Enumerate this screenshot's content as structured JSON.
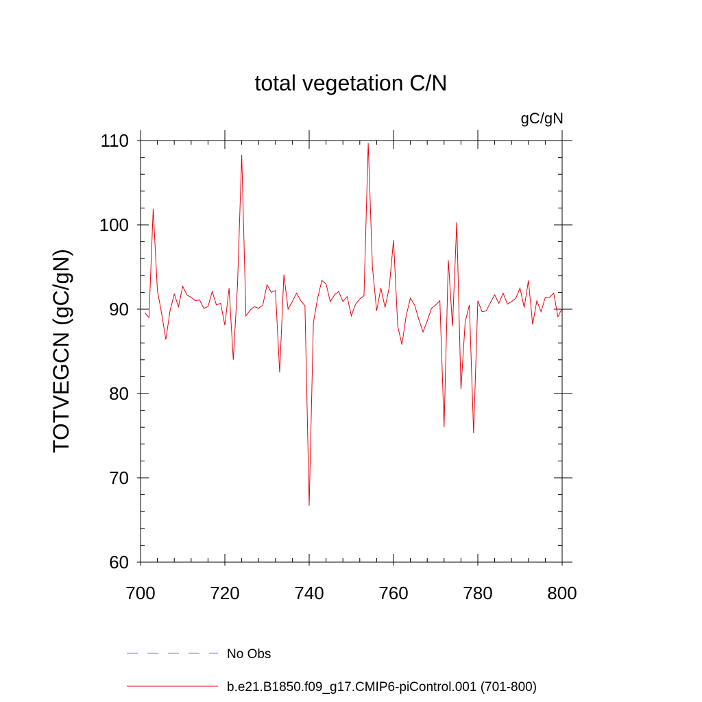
{
  "chart_data": {
    "type": "line",
    "title": "total vegetation C/N",
    "units": "gC/gN",
    "ylabel": "TOTVEGCN  (gC/gN)",
    "xlabel": "",
    "xlim": [
      700,
      800
    ],
    "ylim": [
      60,
      110
    ],
    "xticks": [
      700,
      720,
      740,
      760,
      780,
      800
    ],
    "xtick_labels": [
      "700",
      "720",
      "740",
      "760",
      "780",
      "800"
    ],
    "yticks": [
      60,
      70,
      80,
      90,
      100,
      110
    ],
    "ytick_labels": [
      "60",
      "70",
      "80",
      "90",
      "100",
      "110"
    ],
    "grid": false,
    "legend_position": "bottom-left",
    "series": [
      {
        "name": "No Obs",
        "color": "#7b74c8",
        "style": "dashed",
        "x": [],
        "values": []
      },
      {
        "name": "b.e21.B1850.f09_g17.CMIP6-piControl.001 (701-800)",
        "color": "#e8000b",
        "style": "solid",
        "x": [
          701,
          702,
          703,
          704,
          705,
          706,
          707,
          708,
          709,
          710,
          711,
          712,
          713,
          714,
          715,
          716,
          717,
          718,
          719,
          720,
          721,
          722,
          723,
          724,
          725,
          726,
          727,
          728,
          729,
          730,
          731,
          732,
          733,
          734,
          735,
          736,
          737,
          738,
          739,
          740,
          741,
          742,
          743,
          744,
          745,
          746,
          747,
          748,
          749,
          750,
          751,
          752,
          753,
          754,
          755,
          756,
          757,
          758,
          759,
          760,
          761,
          762,
          763,
          764,
          765,
          766,
          767,
          768,
          769,
          770,
          771,
          772,
          773,
          774,
          775,
          776,
          777,
          778,
          779,
          780,
          781,
          782,
          783,
          784,
          785,
          786,
          787,
          788,
          789,
          790,
          791,
          792,
          793,
          794,
          795,
          796,
          797,
          798,
          799,
          800
        ],
        "values": [
          89.6,
          89.0,
          101.9,
          92.2,
          89.5,
          86.4,
          89.8,
          91.8,
          90.3,
          92.7,
          91.7,
          91.4,
          91.0,
          91.1,
          90.1,
          90.3,
          92.1,
          90.5,
          90.7,
          88.1,
          92.5,
          84.0,
          92.9,
          108.3,
          89.2,
          89.9,
          90.3,
          90.1,
          90.5,
          92.9,
          92.0,
          92.2,
          82.5,
          94.1,
          90.0,
          90.9,
          91.9,
          91.0,
          90.4,
          66.7,
          88.4,
          91.3,
          93.4,
          93.0,
          90.9,
          91.7,
          92.1,
          90.9,
          91.5,
          89.2,
          90.6,
          91.2,
          91.6,
          109.7,
          95.0,
          89.8,
          92.5,
          90.2,
          92.6,
          98.2,
          88.0,
          85.8,
          89.2,
          91.3,
          90.5,
          88.8,
          87.3,
          88.6,
          90.1,
          90.5,
          91.0,
          76.0,
          95.8,
          88.0,
          100.3,
          80.5,
          88.5,
          90.5,
          75.3,
          91.0,
          89.7,
          89.8,
          90.8,
          91.7,
          90.7,
          91.9,
          90.6,
          90.9,
          91.3,
          92.5,
          90.2,
          93.4,
          88.2,
          91.0,
          89.7,
          91.4,
          91.4,
          91.9,
          89.1,
          90.1
        ]
      }
    ]
  }
}
